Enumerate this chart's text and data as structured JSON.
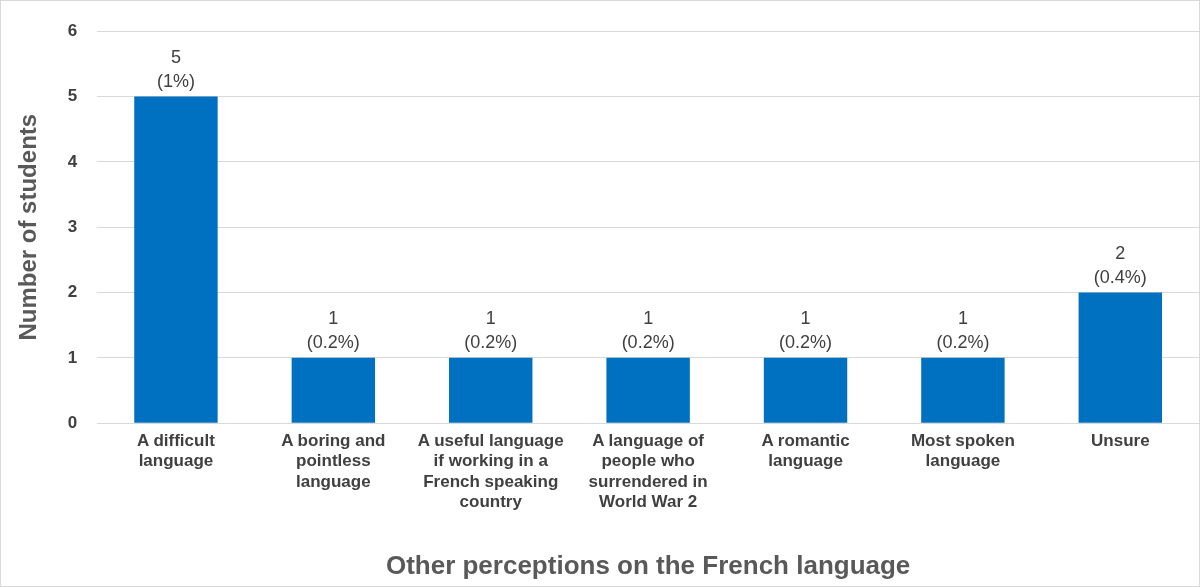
{
  "chart_data": {
    "type": "bar",
    "xlabel": "Other perceptions on the French language",
    "ylabel": "Number of students",
    "categories": [
      "A difficult language",
      "A boring and pointless language",
      "A useful language if working in a French speaking country",
      "A language of people who surrendered in World War 2",
      "A romantic language",
      "Most spoken language",
      "Unsure"
    ],
    "values": [
      5,
      1,
      1,
      1,
      1,
      1,
      2
    ],
    "value_labels": [
      "5\n(1%)",
      "1\n(0.2%)",
      "1\n(0.2%)",
      "1\n(0.2%)",
      "1\n(0.2%)",
      "1\n(0.2%)",
      "2\n(0.4%)"
    ],
    "color": "#0070c0",
    "ylim": [
      0,
      6
    ],
    "yticks": [
      0,
      1,
      2,
      3,
      4,
      5,
      6
    ],
    "grid": "y",
    "legend": false
  }
}
